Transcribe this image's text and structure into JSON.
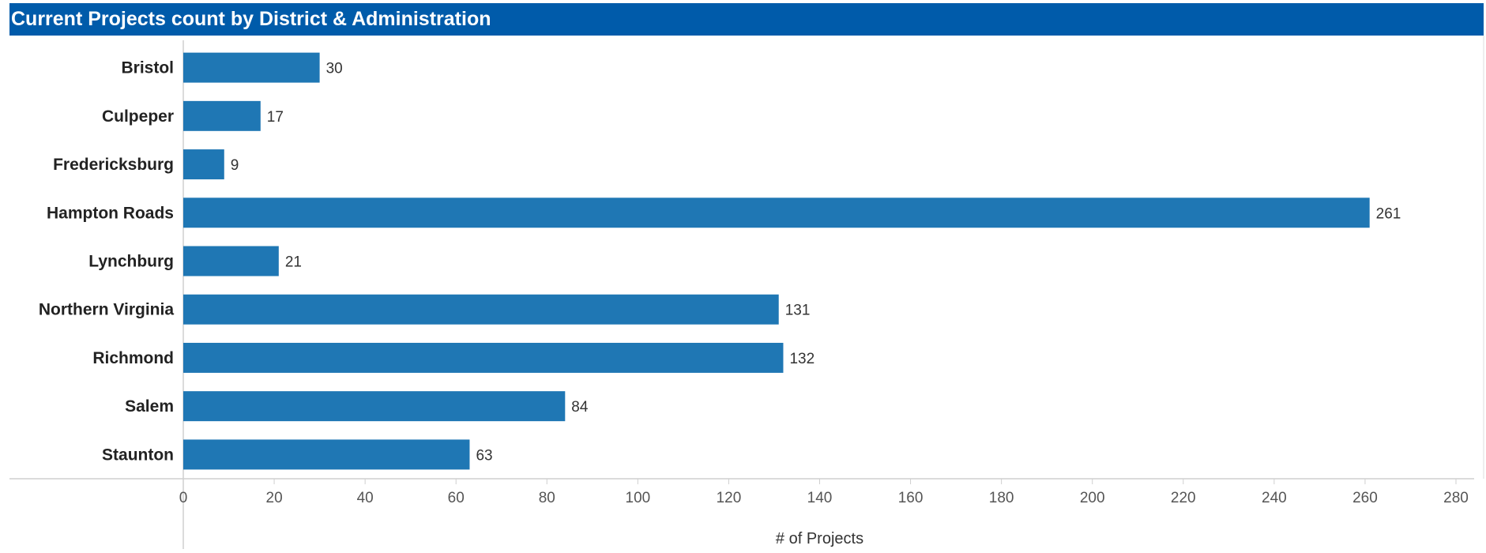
{
  "title": "Current Projects count by District & Administration",
  "colors": {
    "header": "#005BAA",
    "bar": "#1F77B4"
  },
  "chart_data": {
    "type": "bar",
    "orientation": "horizontal",
    "title": "Current Projects count by District & Administration",
    "xlabel": "# of Projects",
    "ylabel": "",
    "categories": [
      "Bristol",
      "Culpeper",
      "Fredericksburg",
      "Hampton Roads",
      "Lynchburg",
      "Northern Virginia",
      "Richmond",
      "Salem",
      "Staunton"
    ],
    "values": [
      30,
      17,
      9,
      261,
      21,
      131,
      132,
      84,
      63
    ],
    "xlim": [
      0,
      280
    ],
    "xticks": [
      0,
      20,
      40,
      60,
      80,
      100,
      120,
      140,
      160,
      180,
      200,
      220,
      240,
      260,
      280
    ],
    "data_labels": true,
    "grid": false,
    "legend": "none"
  }
}
